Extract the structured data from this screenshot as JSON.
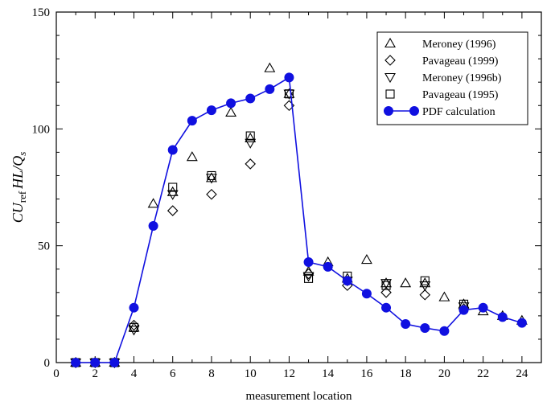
{
  "chart_data": {
    "type": "scatter",
    "xlabel": "measurement location",
    "ylabel": "CU",
    "ylabel_sub": "ref",
    "ylabel_tail": "HL/Q",
    "ylabel_tail_sub": "s",
    "xlim": [
      0,
      25
    ],
    "ylim": [
      0,
      150
    ],
    "xticks": [
      0,
      2,
      4,
      6,
      8,
      10,
      12,
      14,
      16,
      18,
      20,
      22,
      24
    ],
    "yticks": [
      0,
      50,
      100,
      150
    ],
    "grid": false,
    "legend_position": "top-right",
    "series": [
      {
        "name": "Meroney (1996)",
        "marker": "triangle-up",
        "color": "#000000",
        "points": [
          [
            1,
            0
          ],
          [
            2,
            0
          ],
          [
            3,
            0
          ],
          [
            4,
            15
          ],
          [
            5,
            68
          ],
          [
            6,
            73
          ],
          [
            7,
            88
          ],
          [
            8,
            79
          ],
          [
            9,
            107
          ],
          [
            10,
            96
          ],
          [
            11,
            126
          ],
          [
            12,
            115
          ],
          [
            13,
            39
          ],
          [
            14,
            43
          ],
          [
            15,
            36
          ],
          [
            16,
            44
          ],
          [
            17,
            34
          ],
          [
            18,
            34
          ],
          [
            19,
            34
          ],
          [
            20,
            28
          ],
          [
            21,
            25
          ],
          [
            22,
            22
          ],
          [
            23,
            20
          ],
          [
            24,
            18
          ]
        ]
      },
      {
        "name": "Pavageau (1999)",
        "marker": "diamond",
        "color": "#000000",
        "points": [
          [
            1,
            0
          ],
          [
            2,
            0
          ],
          [
            3,
            0
          ],
          [
            4,
            16
          ],
          [
            6,
            65
          ],
          [
            8,
            72
          ],
          [
            10,
            85
          ],
          [
            12,
            110
          ],
          [
            13,
            38
          ],
          [
            15,
            33
          ],
          [
            17,
            30
          ],
          [
            19,
            29
          ],
          [
            21,
            23
          ]
        ]
      },
      {
        "name": "Meroney (1996b)",
        "marker": "triangle-down",
        "color": "#000000",
        "points": [
          [
            1,
            0
          ],
          [
            2,
            0
          ],
          [
            3,
            0
          ],
          [
            4,
            14
          ],
          [
            6,
            72
          ],
          [
            8,
            79
          ],
          [
            10,
            94
          ],
          [
            12,
            115
          ],
          [
            13,
            37
          ],
          [
            15,
            35
          ],
          [
            17,
            34
          ],
          [
            19,
            33
          ],
          [
            21,
            24
          ]
        ]
      },
      {
        "name": "Pavageau (1995)",
        "marker": "square",
        "color": "#000000",
        "points": [
          [
            1,
            0
          ],
          [
            2,
            0
          ],
          [
            3,
            0
          ],
          [
            4,
            15
          ],
          [
            6,
            75
          ],
          [
            8,
            80
          ],
          [
            10,
            97
          ],
          [
            12,
            115
          ],
          [
            13,
            36
          ],
          [
            15,
            37
          ],
          [
            17,
            33
          ],
          [
            19,
            35
          ],
          [
            21,
            25
          ]
        ]
      },
      {
        "name": "PDF calculation",
        "marker": "circle-line",
        "color": "#1010e0",
        "points": [
          [
            1,
            0
          ],
          [
            2,
            0
          ],
          [
            3,
            0
          ],
          [
            4,
            23.5
          ],
          [
            5,
            58.5
          ],
          [
            6,
            91
          ],
          [
            7,
            103.5
          ],
          [
            8,
            108
          ],
          [
            9,
            111
          ],
          [
            10,
            113
          ],
          [
            11,
            117
          ],
          [
            12,
            122
          ],
          [
            13,
            43
          ],
          [
            14,
            41
          ],
          [
            15,
            35
          ],
          [
            16,
            29.5
          ],
          [
            17,
            23.5
          ],
          [
            18,
            16.5
          ],
          [
            19,
            14.8
          ],
          [
            20,
            13.5
          ],
          [
            21,
            22.5
          ],
          [
            22,
            23.5
          ],
          [
            23,
            19.5
          ],
          [
            24,
            17
          ]
        ]
      }
    ]
  }
}
